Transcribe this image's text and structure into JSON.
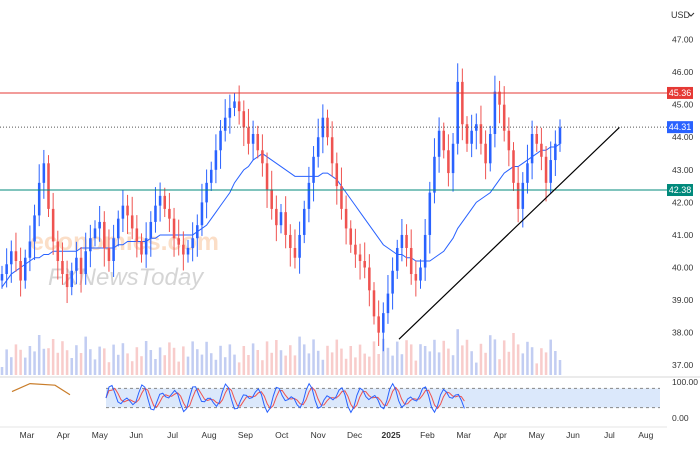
{
  "currency": "USD",
  "watermark": {
    "line1": "economies.com",
    "line2": "FXNewsToday"
  },
  "colors": {
    "up": "#2962ff",
    "down": "#ef5350",
    "ma": "#2962ff",
    "resistance": "#e53935",
    "support": "#00897b",
    "trendline": "#000000",
    "stoch_k": "#2962ff",
    "stoch_d": "#ef5350",
    "stoch_band": "#dbe8fb"
  },
  "chart_data": {
    "type": "candlestick",
    "title": "",
    "xlabel": "",
    "ylabel": "",
    "ylim": [
      36.7,
      47.6
    ],
    "y_ticks": [
      "37.00",
      "38.00",
      "39.00",
      "40.00",
      "41.00",
      "42.00",
      "43.00",
      "44.00",
      "45.00",
      "46.00",
      "47.00"
    ],
    "x_ticks": [
      "Mar",
      "Apr",
      "May",
      "Jun",
      "Jul",
      "Aug",
      "Sep",
      "Oct",
      "Nov",
      "Dec",
      "2025",
      "Feb",
      "Mar",
      "Apr",
      "May",
      "Jun",
      "Jul",
      "Aug"
    ],
    "price_labels": {
      "resistance": "45.36",
      "current": "44.31",
      "support": "42.38"
    },
    "levels": {
      "resistance": 45.36,
      "current": 44.31,
      "support": 42.38
    },
    "trendline": {
      "from": [
        "Jan 2025",
        37.8
      ],
      "to": [
        "Jul 2025",
        44.3
      ]
    },
    "series": [
      {
        "name": "",
        "kind": "close",
        "values": [
          39.8,
          40.1,
          40.5,
          40.2,
          39.6,
          40.3,
          40.8,
          41.6,
          42.6,
          43.2,
          41.8,
          40.8,
          40.2,
          39.8,
          39.4,
          39.9,
          40.3,
          39.8,
          40.5,
          40.9,
          41.2,
          41.4,
          40.6,
          40.2,
          40.9,
          41.5,
          41.9,
          41.6,
          41.2,
          40.8,
          40.4,
          40.9,
          41.4,
          41.9,
          42.2,
          41.8,
          41.5,
          40.9,
          40.7,
          40.4,
          40.6,
          40.9,
          41.3,
          42.0,
          42.6,
          43.0,
          43.6,
          44.2,
          44.6,
          44.9,
          45.1,
          44.8,
          44.3,
          43.8,
          44.1,
          43.6,
          43.2,
          42.4,
          41.8,
          41.3,
          41.7,
          41.0,
          40.6,
          40.3,
          41.0,
          41.8,
          42.6,
          43.4,
          44.0,
          44.6,
          44.0,
          43.2,
          42.5,
          41.8,
          41.2,
          40.7,
          40.4,
          40.2,
          40.0,
          39.3,
          38.5,
          38.0,
          38.6,
          39.2,
          39.9,
          40.6,
          41.0,
          40.6,
          39.8,
          39.6,
          40.0,
          41.0,
          42.3,
          43.4,
          44.2,
          43.6,
          42.9,
          43.8,
          45.7,
          44.4,
          43.8,
          44.2,
          44.4,
          43.8,
          43.2,
          44.1,
          45.4,
          45.0,
          44.2,
          43.6,
          42.6,
          41.8,
          42.6,
          43.2,
          44.1,
          43.8,
          43.4,
          42.6,
          43.3,
          43.8,
          44.3
        ]
      },
      {
        "name": "",
        "kind": "moving-average",
        "values": [
          39.4,
          39.6,
          39.8,
          39.9,
          40.0,
          40.1,
          40.2,
          40.3,
          40.3,
          40.4,
          40.4,
          40.5,
          40.5,
          40.5,
          40.5,
          40.5,
          40.5,
          40.6,
          40.6,
          40.6,
          40.6,
          40.6,
          40.6,
          40.6,
          40.6,
          40.7,
          40.7,
          40.8,
          40.8,
          40.8,
          40.8,
          40.8,
          40.9,
          40.9,
          41.0,
          41.0,
          41.0,
          41.0,
          41.0,
          41.0,
          41.0,
          41.0,
          41.1,
          41.2,
          41.3,
          41.5,
          41.7,
          41.9,
          42.1,
          42.3,
          42.6,
          42.8,
          43.0,
          43.1,
          43.3,
          43.4,
          43.5,
          43.4,
          43.3,
          43.2,
          43.1,
          43.0,
          42.9,
          42.8,
          42.8,
          42.8,
          42.8,
          42.8,
          42.8,
          42.9,
          42.9,
          42.8,
          42.7,
          42.5,
          42.3,
          42.1,
          41.9,
          41.7,
          41.5,
          41.3,
          41.1,
          40.9,
          40.7,
          40.6,
          40.5,
          40.4,
          40.4,
          40.3,
          40.3,
          40.2,
          40.2,
          40.2,
          40.2,
          40.3,
          40.4,
          40.5,
          40.7,
          40.9,
          41.2,
          41.4,
          41.6,
          41.8,
          42.0,
          42.1,
          42.2,
          42.3,
          42.5,
          42.7,
          42.9,
          43.0,
          43.1,
          43.1,
          43.2,
          43.3,
          43.4,
          43.5,
          43.6,
          43.6,
          43.7,
          43.7,
          43.8
        ]
      }
    ],
    "stochastic": {
      "range": [
        0,
        100
      ],
      "upper_band": 80,
      "lower_band": 20,
      "tick_labels": [
        "100.00",
        "0.00"
      ]
    }
  }
}
